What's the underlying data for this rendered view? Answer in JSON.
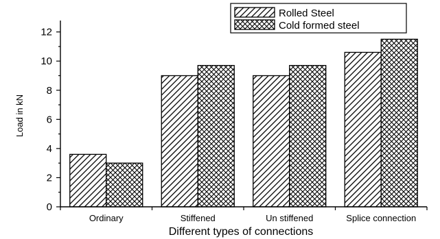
{
  "chart_data": {
    "type": "bar",
    "title": "",
    "xlabel": "Different types of connections",
    "ylabel": "Load in kN",
    "categories": [
      "Ordinary",
      "Stiffened",
      "Un stiffened",
      "Splice connection"
    ],
    "series": [
      {
        "name": "Rolled Steel",
        "values": [
          3.6,
          9.0,
          9.0,
          10.6
        ],
        "pattern": "diagonal-hatch"
      },
      {
        "name": "Cold formed steel",
        "values": [
          3.0,
          9.7,
          9.7,
          11.5
        ],
        "pattern": "cross-hatch"
      }
    ],
    "ylim": [
      0,
      12.5
    ],
    "yticks": [
      "0",
      "2",
      "4",
      "6",
      "8",
      "10",
      "12"
    ],
    "grid": false,
    "legend_position": "top-right",
    "colors": {
      "bar_ink": "#000000",
      "background": "#ffffff"
    }
  }
}
